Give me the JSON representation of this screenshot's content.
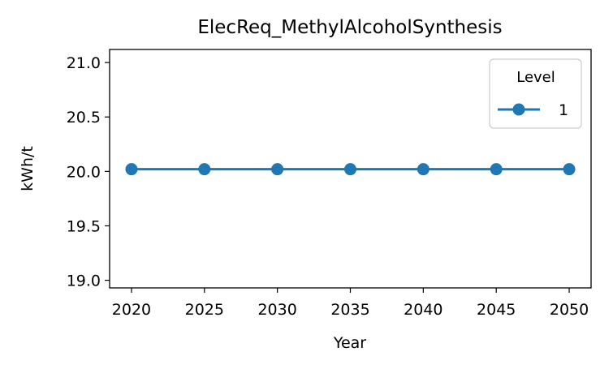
{
  "chart_data": {
    "type": "line",
    "title": "ElecReq_MethylAlcoholSynthesis",
    "xlabel": "Year",
    "ylabel": "kWh/t",
    "x": [
      2020,
      2025,
      2030,
      2035,
      2040,
      2045,
      2050
    ],
    "xlim": [
      2018.5,
      2051.5
    ],
    "ylim": [
      18.93,
      21.12
    ],
    "xticks": [
      2020,
      2025,
      2030,
      2035,
      2040,
      2045,
      2050
    ],
    "yticks": [
      19.0,
      19.5,
      20.0,
      20.5,
      21.0
    ],
    "ytick_labels": [
      "19.0",
      "19.5",
      "20.0",
      "20.5",
      "21.0"
    ],
    "series": [
      {
        "name": "1",
        "color": "#1f77b4",
        "marker": "circle",
        "values": [
          20.02,
          20.02,
          20.02,
          20.02,
          20.02,
          20.02,
          20.02
        ]
      }
    ],
    "legend": {
      "title": "Level",
      "placement": "top-right"
    },
    "grid": false
  }
}
